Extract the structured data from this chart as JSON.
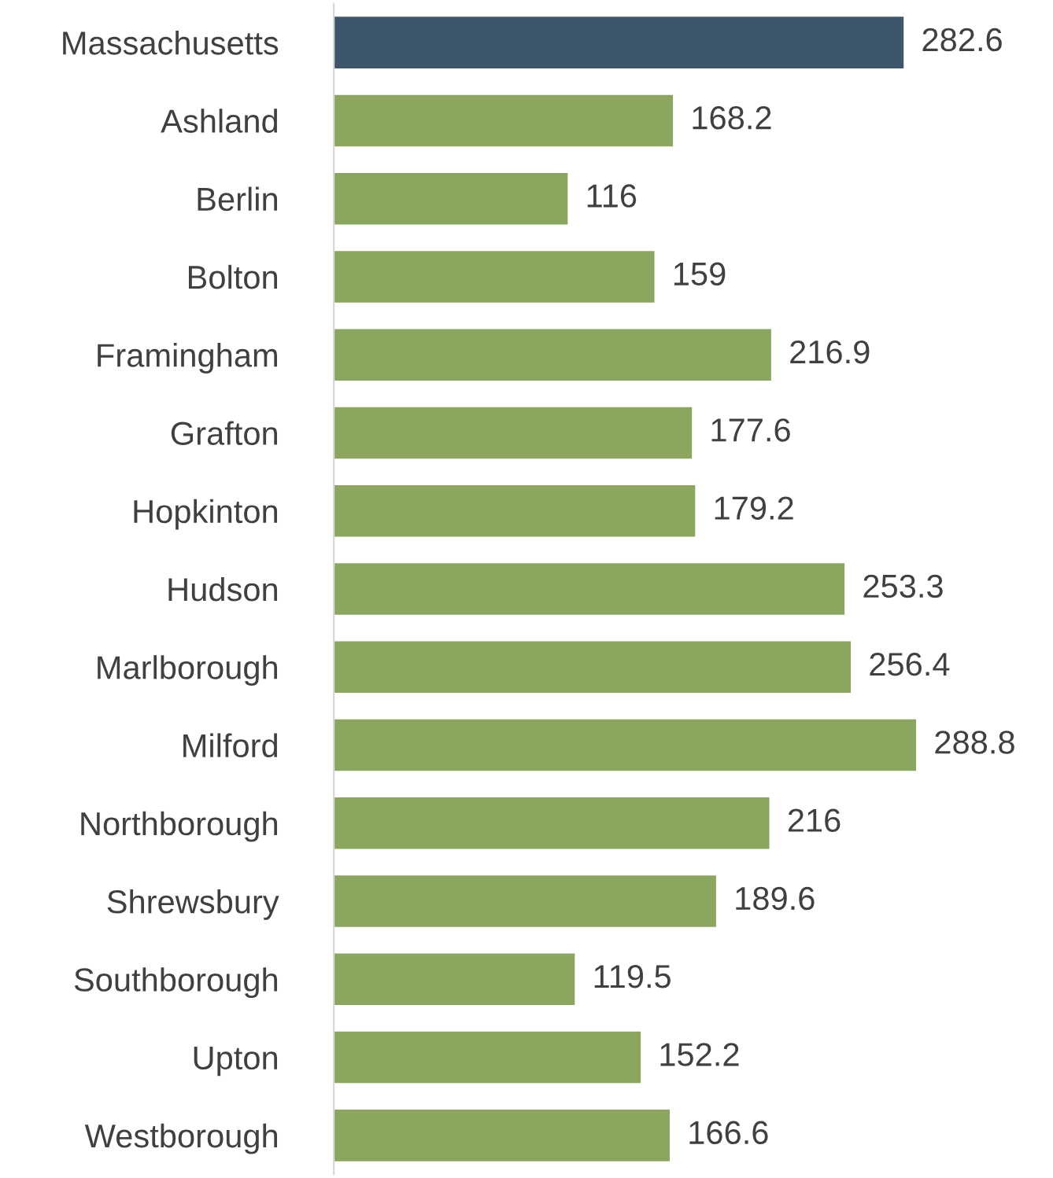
{
  "chart_data": {
    "type": "bar",
    "orientation": "horizontal",
    "data_labels": true,
    "grid": false,
    "legend": false,
    "categories": [
      "Massachusetts",
      "Ashland",
      "Berlin",
      "Bolton",
      "Framingham",
      "Grafton",
      "Hopkinton",
      "Hudson",
      "Marlborough",
      "Milford",
      "Northborough",
      "Shrewsbury",
      "Southborough",
      "Upton",
      "Westborough"
    ],
    "values": [
      282.6,
      168.2,
      116,
      159,
      216.9,
      177.6,
      179.2,
      253.3,
      256.4,
      288.8,
      216,
      189.6,
      119.5,
      152.2,
      166.6
    ],
    "colors": [
      "#3d566b",
      "#8ba75f",
      "#8ba75f",
      "#8ba75f",
      "#8ba75f",
      "#8ba75f",
      "#8ba75f",
      "#8ba75f",
      "#8ba75f",
      "#8ba75f",
      "#8ba75f",
      "#8ba75f",
      "#8ba75f",
      "#8ba75f",
      "#8ba75f"
    ]
  }
}
